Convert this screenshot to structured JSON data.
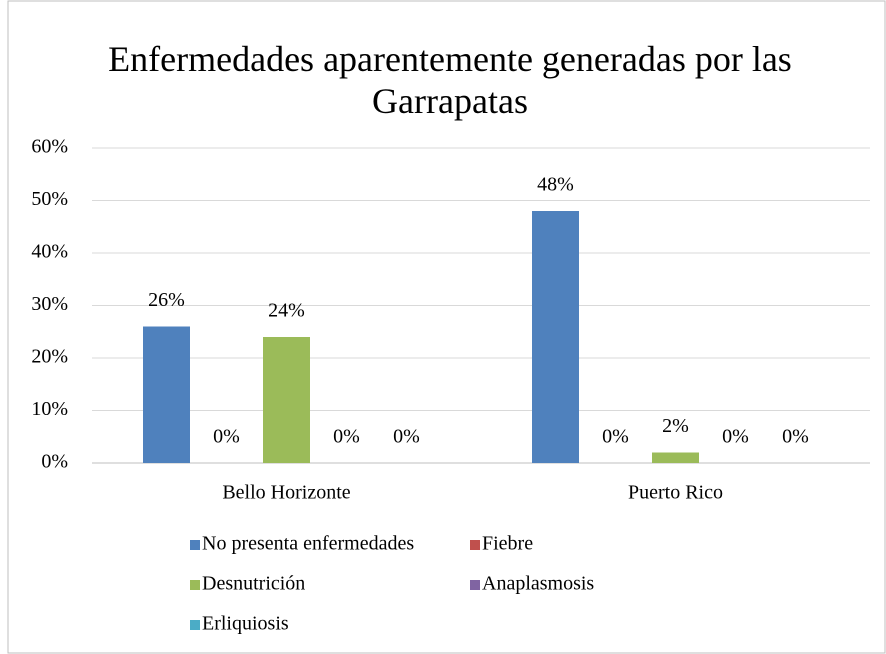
{
  "chart_data": {
    "type": "bar",
    "title": "Enfermedades aparentemente generadas por las Garrapatas",
    "categories": [
      "Bello Horizonte",
      "Puerto Rico"
    ],
    "series": [
      {
        "name": "No presenta enfermedades",
        "color": "#4f81bd",
        "values": [
          26,
          48
        ],
        "value_labels": [
          "26%",
          "48%"
        ]
      },
      {
        "name": "Fiebre",
        "color": "#c0504d",
        "values": [
          0,
          0
        ],
        "value_labels": [
          "0%",
          "0%"
        ]
      },
      {
        "name": "Desnutrición",
        "color": "#9bbb59",
        "values": [
          24,
          2
        ],
        "value_labels": [
          "24%",
          "2%"
        ]
      },
      {
        "name": "Anaplasmosis",
        "color": "#8064a2",
        "values": [
          0,
          0
        ],
        "value_labels": [
          "0%",
          "0%"
        ]
      },
      {
        "name": "Erliquiosis",
        "color": "#4bacc6",
        "values": [
          0,
          0
        ],
        "value_labels": [
          "0%",
          "0%"
        ]
      }
    ],
    "ylim": [
      0,
      60
    ],
    "yticks": [
      {
        "value": 0,
        "label": "0%"
      },
      {
        "value": 10,
        "label": "10%"
      },
      {
        "value": 20,
        "label": "20%"
      },
      {
        "value": 30,
        "label": "30%"
      },
      {
        "value": 40,
        "label": "40%"
      },
      {
        "value": 50,
        "label": "50%"
      },
      {
        "value": 60,
        "label": "60%"
      }
    ],
    "grid": true,
    "legend": "bottom"
  }
}
